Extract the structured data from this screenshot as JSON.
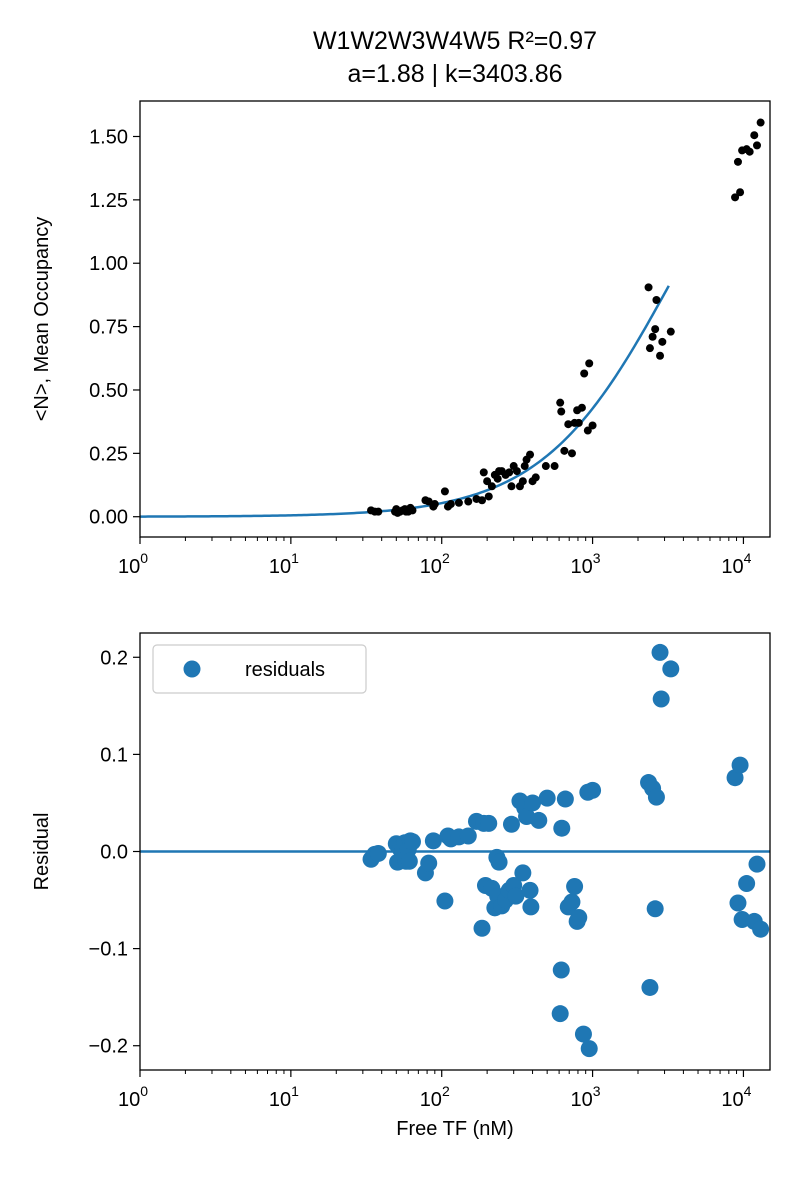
{
  "figure": {
    "title_line1": "W1W2W3W4W5 R²=0.97",
    "title_line2": "a=1.88 | k=3403.86"
  },
  "colors": {
    "fit": "#1f77b4",
    "points": "#000000",
    "residuals": "#1f77b4"
  },
  "chart_data": [
    {
      "type": "scatter",
      "title": "W1W2W3W4W5 R²=0.97",
      "subtitle": "a=1.88 | k=3403.86",
      "xlabel": "",
      "ylabel": "<N>, Mean Occupancy",
      "xscale": "log",
      "xlim": [
        1,
        15000
      ],
      "ylim": [
        -0.08,
        1.64
      ],
      "grid": false,
      "x_tick_values": [
        1,
        10,
        100,
        1000,
        10000
      ],
      "x_tick_labels": [
        [
          "10",
          "0"
        ],
        [
          "10",
          "1"
        ],
        [
          "10",
          "2"
        ],
        [
          "10",
          "3"
        ],
        [
          "10",
          "4"
        ]
      ],
      "y_ticks": [
        0.0,
        0.25,
        0.5,
        0.75,
        1.0,
        1.25,
        1.5
      ],
      "y_tick_labels": [
        "0.00",
        "0.25",
        "0.50",
        "0.75",
        "1.00",
        "1.25",
        "1.50"
      ],
      "series": [
        {
          "kind": "line",
          "fit": {
            "a": 1.88,
            "k": 3403.86,
            "x_range": [
              1,
              3200
            ]
          }
        },
        {
          "kind": "points",
          "points": [
            [
              34,
              0.025
            ],
            [
              36,
              0.02
            ],
            [
              38,
              0.02
            ],
            [
              49,
              0.02
            ],
            [
              50,
              0.03
            ],
            [
              51,
              0.015
            ],
            [
              53,
              0.02
            ],
            [
              55,
              0.025
            ],
            [
              57,
              0.03
            ],
            [
              58,
              0.02
            ],
            [
              60,
              0.02
            ],
            [
              62,
              0.035
            ],
            [
              64,
              0.025
            ],
            [
              78,
              0.065
            ],
            [
              82,
              0.06
            ],
            [
              88,
              0.04
            ],
            [
              90,
              0.05
            ],
            [
              105,
              0.1
            ],
            [
              110,
              0.04
            ],
            [
              115,
              0.05
            ],
            [
              130,
              0.055
            ],
            [
              150,
              0.06
            ],
            [
              170,
              0.07
            ],
            [
              185,
              0.065
            ],
            [
              190,
              0.175
            ],
            [
              200,
              0.14
            ],
            [
              205,
              0.08
            ],
            [
              215,
              0.12
            ],
            [
              225,
              0.165
            ],
            [
              235,
              0.15
            ],
            [
              240,
              0.18
            ],
            [
              250,
              0.18
            ],
            [
              265,
              0.165
            ],
            [
              280,
              0.175
            ],
            [
              290,
              0.12
            ],
            [
              300,
              0.2
            ],
            [
              315,
              0.18
            ],
            [
              330,
              0.12
            ],
            [
              345,
              0.14
            ],
            [
              355,
              0.2
            ],
            [
              365,
              0.225
            ],
            [
              385,
              0.245
            ],
            [
              400,
              0.14
            ],
            [
              420,
              0.155
            ],
            [
              490,
              0.2
            ],
            [
              560,
              0.2
            ],
            [
              610,
              0.45
            ],
            [
              620,
              0.415
            ],
            [
              650,
              0.26
            ],
            [
              690,
              0.365
            ],
            [
              730,
              0.25
            ],
            [
              760,
              0.37
            ],
            [
              790,
              0.42
            ],
            [
              810,
              0.37
            ],
            [
              850,
              0.43
            ],
            [
              880,
              0.565
            ],
            [
              930,
              0.34
            ],
            [
              950,
              0.605
            ],
            [
              1000,
              0.36
            ],
            [
              2350,
              0.905
            ],
            [
              2400,
              0.665
            ],
            [
              2500,
              0.71
            ],
            [
              2600,
              0.74
            ],
            [
              2650,
              0.855
            ],
            [
              2800,
              0.635
            ],
            [
              2900,
              0.69
            ],
            [
              3300,
              0.73
            ],
            [
              8800,
              1.26
            ],
            [
              9200,
              1.4
            ],
            [
              9500,
              1.28
            ],
            [
              9800,
              1.445
            ],
            [
              10500,
              1.45
            ],
            [
              11000,
              1.44
            ],
            [
              11800,
              1.505
            ],
            [
              12300,
              1.465
            ],
            [
              13000,
              1.555
            ]
          ]
        }
      ]
    },
    {
      "type": "scatter",
      "title": "",
      "xlabel": "Free TF (nM)",
      "ylabel": "Residual",
      "xscale": "log",
      "xlim": [
        1,
        15000
      ],
      "ylim": [
        -0.225,
        0.225
      ],
      "grid": false,
      "legend_position": "top-left",
      "zero_line": 0,
      "x_tick_values": [
        1,
        10,
        100,
        1000,
        10000
      ],
      "x_tick_labels": [
        [
          "10",
          "0"
        ],
        [
          "10",
          "1"
        ],
        [
          "10",
          "2"
        ],
        [
          "10",
          "3"
        ],
        [
          "10",
          "4"
        ]
      ],
      "y_ticks": [
        -0.2,
        -0.1,
        0.0,
        0.1,
        0.2
      ],
      "y_tick_labels": [
        "−0.2",
        "−0.1",
        "0.0",
        "0.1",
        "0.2"
      ],
      "series": [
        {
          "name": "residuals",
          "points": [
            [
              34,
              -0.008
            ],
            [
              36,
              -0.003
            ],
            [
              38,
              -0.002
            ],
            [
              50,
              0.008
            ],
            [
              51,
              -0.011
            ],
            [
              53,
              0.003
            ],
            [
              55,
              0.001
            ],
            [
              57,
              0.009
            ],
            [
              58,
              -0.01
            ],
            [
              60,
              0.002
            ],
            [
              61,
              -0.01
            ],
            [
              62,
              0.011
            ],
            [
              64,
              0.01
            ],
            [
              78,
              -0.022
            ],
            [
              82,
              -0.012
            ],
            [
              88,
              0.011
            ],
            [
              105,
              -0.051
            ],
            [
              110,
              0.016
            ],
            [
              115,
              0.013
            ],
            [
              130,
              0.015
            ],
            [
              150,
              0.016
            ],
            [
              170,
              0.031
            ],
            [
              185,
              -0.079
            ],
            [
              190,
              0.029
            ],
            [
              195,
              -0.035
            ],
            [
              205,
              0.029
            ],
            [
              215,
              -0.038
            ],
            [
              225,
              -0.058
            ],
            [
              232,
              -0.006
            ],
            [
              235,
              -0.046
            ],
            [
              240,
              -0.011
            ],
            [
              250,
              -0.056
            ],
            [
              265,
              -0.05
            ],
            [
              280,
              -0.04
            ],
            [
              290,
              0.028
            ],
            [
              300,
              -0.035
            ],
            [
              310,
              -0.046
            ],
            [
              330,
              0.052
            ],
            [
              345,
              -0.022
            ],
            [
              355,
              0.045
            ],
            [
              365,
              0.036
            ],
            [
              385,
              -0.04
            ],
            [
              390,
              -0.057
            ],
            [
              400,
              0.05
            ],
            [
              440,
              0.032
            ],
            [
              500,
              0.055
            ],
            [
              610,
              -0.167
            ],
            [
              620,
              -0.122
            ],
            [
              625,
              0.024
            ],
            [
              660,
              0.054
            ],
            [
              690,
              -0.057
            ],
            [
              730,
              -0.052
            ],
            [
              760,
              -0.036
            ],
            [
              790,
              -0.072
            ],
            [
              810,
              -0.068
            ],
            [
              870,
              -0.188
            ],
            [
              930,
              0.061
            ],
            [
              950,
              -0.203
            ],
            [
              1000,
              0.063
            ],
            [
              2350,
              0.071
            ],
            [
              2400,
              -0.14
            ],
            [
              2500,
              0.065
            ],
            [
              2600,
              -0.059
            ],
            [
              2650,
              0.056
            ],
            [
              2800,
              0.205
            ],
            [
              2850,
              0.157
            ],
            [
              3300,
              0.188
            ],
            [
              8800,
              0.076
            ],
            [
              9200,
              -0.053
            ],
            [
              9500,
              0.089
            ],
            [
              9800,
              -0.07
            ],
            [
              10500,
              -0.033
            ],
            [
              11800,
              -0.072
            ],
            [
              12300,
              -0.013
            ],
            [
              13000,
              -0.08
            ]
          ]
        }
      ]
    }
  ]
}
